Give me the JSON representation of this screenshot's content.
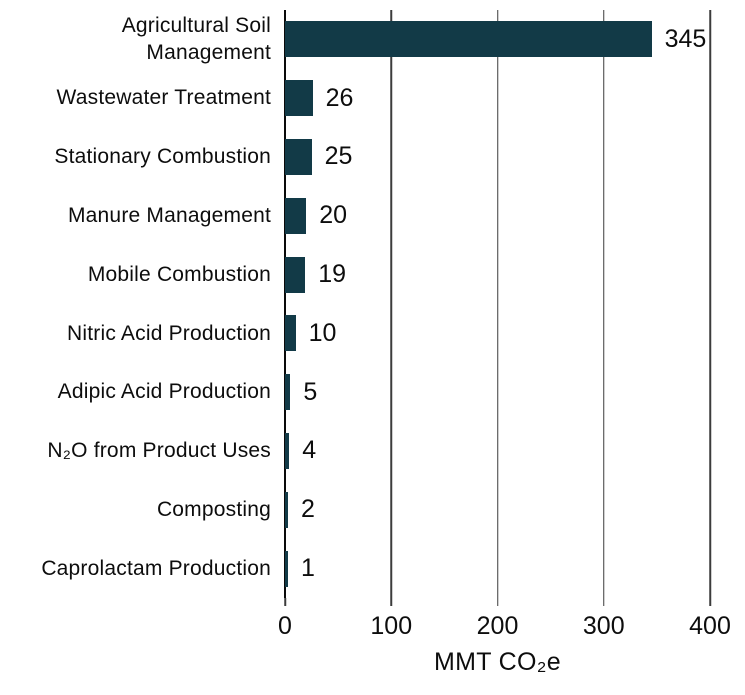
{
  "chart_data": {
    "type": "bar",
    "orientation": "horizontal",
    "categories": [
      "Agricultural Soil Management",
      "Wastewater Treatment",
      "Stationary Combustion",
      "Manure Management",
      "Mobile Combustion",
      "Nitric Acid Production",
      "Adipic Acid Production",
      "N₂O from Product Uses",
      "Composting",
      "Caprolactam Production"
    ],
    "values": [
      345,
      26,
      25,
      20,
      19,
      10,
      5,
      4,
      2,
      1
    ],
    "title": "",
    "xlabel": "MMT CO₂e",
    "ylabel": "",
    "xlim": [
      0,
      400
    ],
    "xticks": [
      0,
      100,
      200,
      300,
      400
    ],
    "grid": true,
    "legend": "none",
    "value_labels_shown": true,
    "bar_color": "#123a47",
    "gridline_color": "#3c3c3c",
    "axis_color": "#0a0a0a",
    "text_color": "#0d0d0d"
  }
}
